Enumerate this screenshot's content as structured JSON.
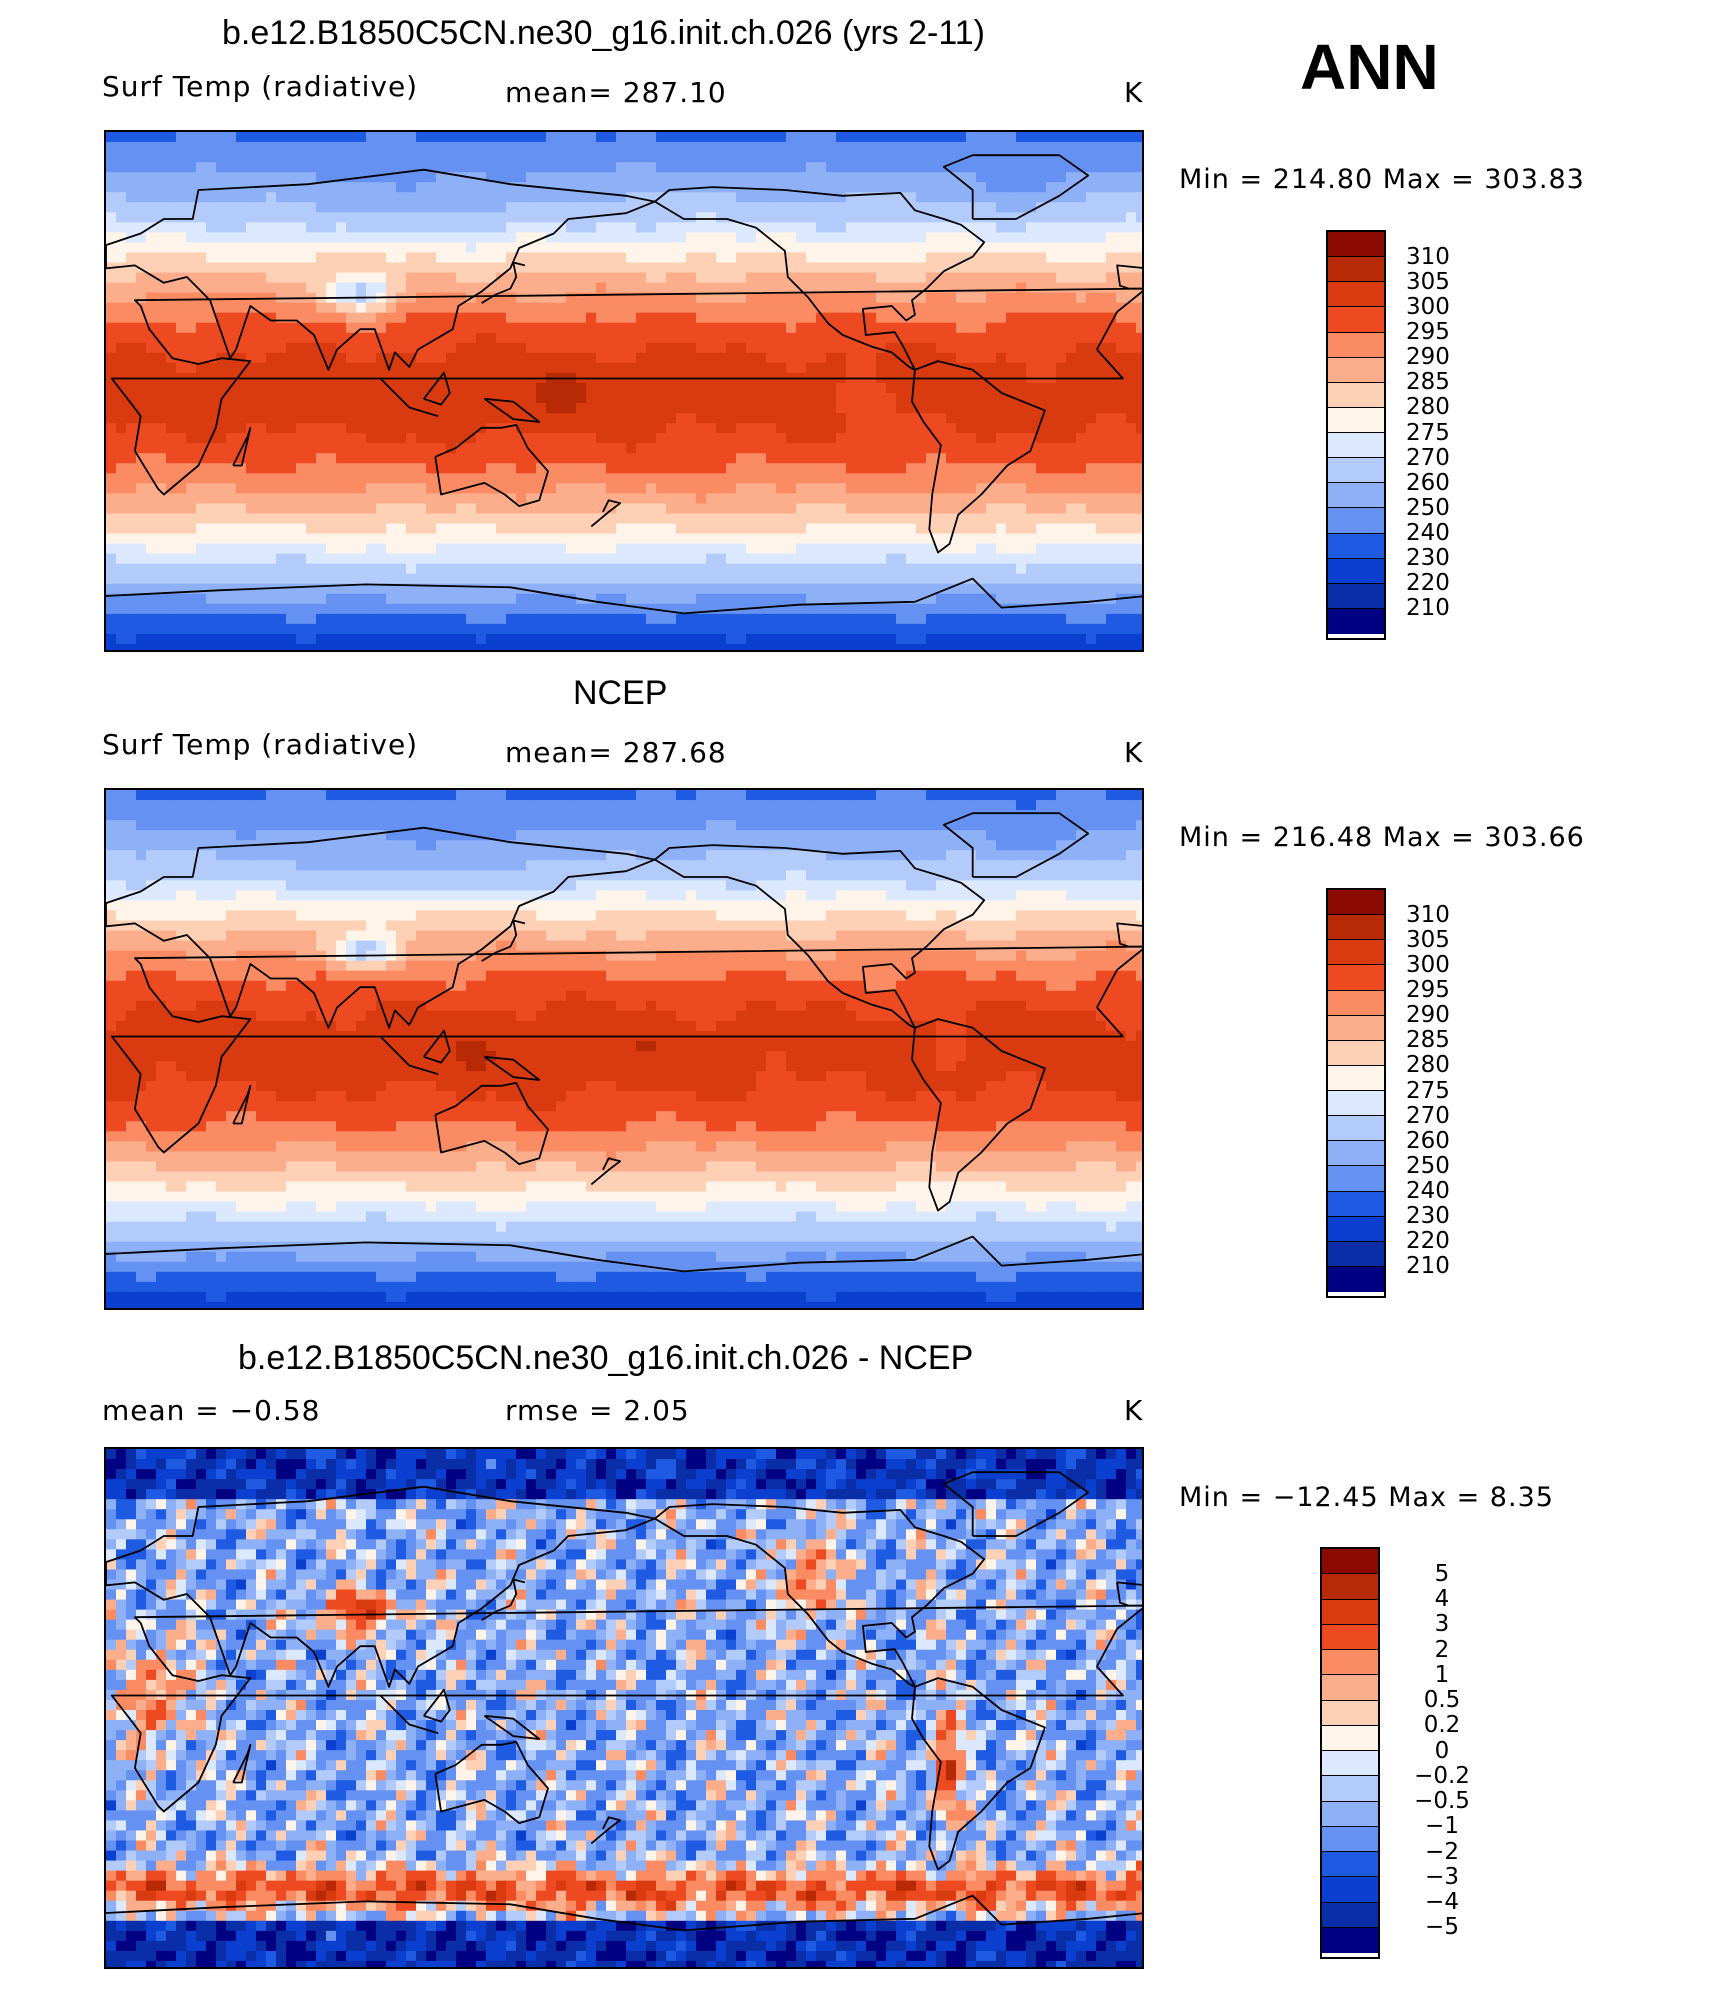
{
  "season_label": "ANN",
  "colors": {
    "temp_scale": [
      "#000082",
      "#0a2ea8",
      "#0b3fcf",
      "#1f5ae3",
      "#3f77ec",
      "#6592f2",
      "#8db0f6",
      "#b3cbfa",
      "#dbe8fd",
      "#fff4ea",
      "#fed0b5",
      "#fcae8c",
      "#fb8b63",
      "#f86a3f",
      "#ee4a22",
      "#d93a10",
      "#b82a05",
      "#8b0a00"
    ],
    "diff_scale": [
      "#000082",
      "#0a2ea8",
      "#0b3fcf",
      "#1f5ae3",
      "#3f77ec",
      "#6592f2",
      "#8db0f6",
      "#b3cbfa",
      "#dbe8fd",
      "#fff4ea",
      "#fed0b5",
      "#fcae8c",
      "#fb8b63",
      "#f86a3f",
      "#ee4a22",
      "#d93a10",
      "#b82a05",
      "#8b0a00"
    ],
    "coastline": "#000000"
  },
  "chart_data": [
    {
      "type": "heatmap",
      "title": "b.e12.B1850C5CN.ne30_g16.init.ch.026 (yrs 2-11)",
      "variable_label": "Surf Temp (radiative)",
      "stat_text": "mean=  287.10",
      "units": "K",
      "minmax_text": "Min  =  214.80  Max  =  303.83",
      "mean": 287.1,
      "min": 214.8,
      "max": 303.83,
      "levels": [
        "310",
        "305",
        "300",
        "295",
        "290",
        "285",
        "280",
        "275",
        "270",
        "260",
        "250",
        "240",
        "230",
        "220",
        "210"
      ],
      "projection": "cylindrical equidistant, centered 180"
    },
    {
      "type": "heatmap",
      "title": "NCEP",
      "variable_label": "Surf Temp (radiative)",
      "stat_text": "mean=  287.68",
      "units": "K",
      "minmax_text": "Min  =  216.48  Max  =  303.66",
      "mean": 287.68,
      "min": 216.48,
      "max": 303.66,
      "levels": [
        "310",
        "305",
        "300",
        "295",
        "290",
        "285",
        "280",
        "275",
        "270",
        "260",
        "250",
        "240",
        "230",
        "220",
        "210"
      ],
      "projection": "cylindrical equidistant, centered 180"
    },
    {
      "type": "heatmap",
      "title": "b.e12.B1850C5CN.ne30_g16.init.ch.026 - NCEP",
      "variable_label": "mean  =    −0.58",
      "stat_text": "rmse  =     2.05",
      "units": "K",
      "minmax_text": "Min  =  −12.45  Max  =     8.35",
      "mean": -0.58,
      "rmse": 2.05,
      "min": -12.45,
      "max": 8.35,
      "levels": [
        "5",
        "4",
        "3",
        "2",
        "1",
        "0.5",
        "0.2",
        "0",
        "−0.2",
        "−0.5",
        "−1",
        "−2",
        "−3",
        "−4",
        "−5"
      ],
      "projection": "cylindrical equidistant, centered 180"
    }
  ]
}
